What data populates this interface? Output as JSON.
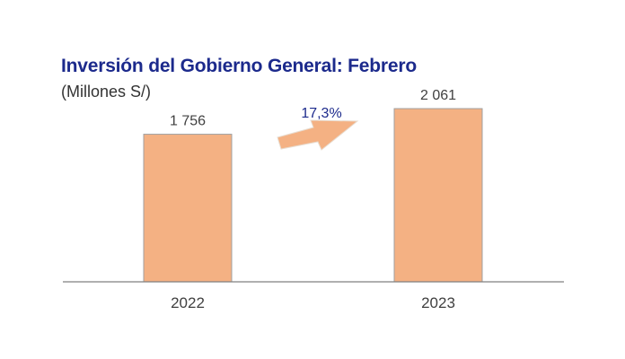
{
  "chart_data": {
    "type": "bar",
    "title": "Inversión del Gobierno General: Febrero",
    "subtitle": "(Millones S/)",
    "categories": [
      "2022",
      "2023"
    ],
    "values": [
      1756,
      2061
    ],
    "value_labels": [
      "1 756",
      "2 061"
    ],
    "ylim": [
      0,
      2200
    ],
    "grid": false,
    "legend": "none",
    "annotation": {
      "text": "17,3%",
      "type": "growth-arrow",
      "from": "2022",
      "to": "2023"
    },
    "colors": {
      "bar_fill": "#f4b183",
      "bar_stroke": "#a0a0a0",
      "title": "#1c2a8c",
      "annotation_text": "#1c2a8c",
      "arrow_fill": "#f4b183",
      "baseline": "#808080",
      "label_text": "#404040"
    }
  }
}
